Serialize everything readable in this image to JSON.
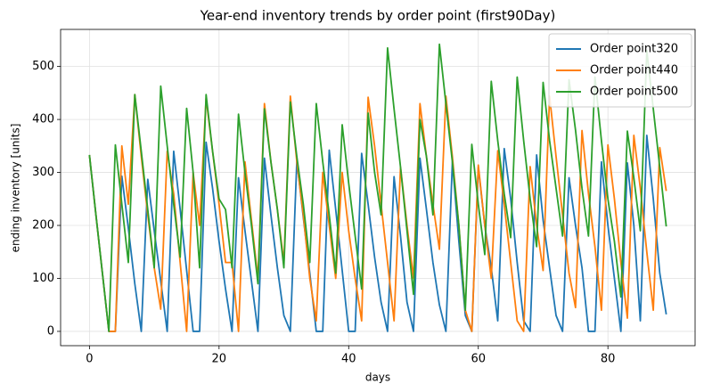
{
  "chart_data": {
    "type": "line",
    "title": "Year-end inventory trends by order point (first90Day)",
    "x_label": "days",
    "y_label": "ending inventory [units]",
    "x": [
      0,
      1,
      2,
      3,
      4,
      5,
      6,
      7,
      8,
      9,
      10,
      11,
      12,
      13,
      14,
      15,
      16,
      17,
      18,
      19,
      20,
      21,
      22,
      23,
      24,
      25,
      26,
      27,
      28,
      29,
      30,
      31,
      32,
      33,
      34,
      35,
      36,
      37,
      38,
      39,
      40,
      41,
      42,
      43,
      44,
      45,
      46,
      47,
      48,
      49,
      50,
      51,
      52,
      53,
      54,
      55,
      56,
      57,
      58,
      59,
      60,
      61,
      62,
      63,
      64,
      65,
      66,
      67,
      68,
      69,
      70,
      71,
      72,
      73,
      74,
      75,
      76,
      77,
      78,
      79,
      80,
      81,
      82,
      83,
      84,
      85,
      86,
      87,
      88,
      89
    ],
    "series": [
      {
        "name": "Order point320",
        "color": "#1f77b4",
        "values": [
          333,
          220,
          110,
          0,
          0,
          293,
          195,
          90,
          0,
          287,
          190,
          95,
          0,
          340,
          230,
          115,
          0,
          0,
          357,
          270,
          170,
          80,
          0,
          290,
          190,
          95,
          0,
          327,
          220,
          120,
          30,
          0,
          322,
          215,
          110,
          0,
          0,
          342,
          230,
          115,
          0,
          0,
          336,
          240,
          140,
          55,
          0,
          292,
          180,
          55,
          0,
          327,
          230,
          130,
          50,
          0,
          320,
          170,
          30,
          0,
          310,
          200,
          120,
          20,
          345,
          250,
          130,
          20,
          0,
          333,
          210,
          120,
          30,
          0,
          290,
          200,
          120,
          0,
          0,
          320,
          200,
          100,
          0,
          318,
          200,
          20,
          370,
          250,
          110,
          32
        ]
      },
      {
        "name": "Order point440",
        "color": "#ff7f0e",
        "values": [
          333,
          220,
          110,
          0,
          0,
          350,
          240,
          447,
          330,
          220,
          120,
          42,
          340,
          260,
          130,
          0,
          300,
          200,
          440,
          340,
          240,
          130,
          130,
          0,
          320,
          210,
          100,
          430,
          320,
          230,
          130,
          444,
          320,
          220,
          100,
          20,
          300,
          200,
          100,
          300,
          190,
          100,
          20,
          442,
          350,
          240,
          130,
          20,
          310,
          200,
          100,
          430,
          330,
          240,
          155,
          444,
          330,
          200,
          40,
          0,
          314,
          200,
          100,
          341,
          240,
          130,
          20,
          0,
          311,
          200,
          115,
          444,
          330,
          220,
          110,
          45,
          379,
          260,
          160,
          40,
          352,
          250,
          130,
          25,
          370,
          270,
          150,
          40,
          347,
          265
        ]
      },
      {
        "name": "Order point500",
        "color": "#2ca02c",
        "values": [
          333,
          220,
          110,
          0,
          352,
          240,
          130,
          447,
          340,
          230,
          120,
          463,
          350,
          240,
          140,
          421,
          300,
          120,
          447,
          340,
          250,
          230,
          120,
          410,
          300,
          200,
          90,
          420,
          320,
          230,
          120,
          433,
          330,
          240,
          130,
          430,
          320,
          220,
          110,
          390,
          280,
          180,
          80,
          412,
          300,
          220,
          535,
          420,
          310,
          190,
          70,
          400,
          330,
          220,
          542,
          430,
          320,
          200,
          40,
          353,
          240,
          145,
          472,
          360,
          260,
          177,
          480,
          360,
          250,
          160,
          470,
          360,
          270,
          180,
          475,
          380,
          270,
          180,
          480,
          360,
          250,
          170,
          65,
          378,
          290,
          190,
          530,
          420,
          310,
          198
        ]
      }
    ],
    "xlim": [
      -4.45,
      93.45
    ],
    "xticks": [
      0,
      20,
      40,
      60,
      80
    ],
    "ylim": [
      -27,
      570
    ],
    "yticks": [
      0,
      100,
      200,
      300,
      400,
      500
    ],
    "grid": true,
    "legend": "upper right"
  }
}
